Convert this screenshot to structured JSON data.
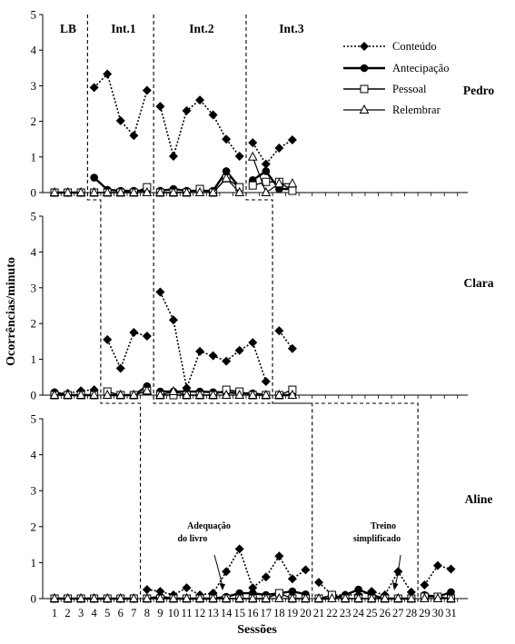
{
  "chart_data": {
    "type": "line",
    "ylabel": "Ocorrências/minuto",
    "xlabel": "Sessões",
    "x": [
      1,
      2,
      3,
      4,
      5,
      6,
      7,
      8,
      9,
      10,
      11,
      12,
      13,
      14,
      15,
      16,
      17,
      18,
      19,
      20,
      21,
      22,
      23,
      24,
      25,
      26,
      27,
      28,
      29,
      30,
      31
    ],
    "ylim": [
      0,
      5
    ],
    "yticks": [
      "0",
      "1",
      "2",
      "3",
      "4",
      "5"
    ],
    "phase_labels": [
      "LB",
      "Int.1",
      "Int.2",
      "Int.3"
    ],
    "legend": [
      "Conteúdo",
      "Antecipação",
      "Pessoal",
      "Relembrar"
    ],
    "annotations": [
      "Adequação",
      "do livro",
      "Treino",
      "simplificado"
    ],
    "panels": [
      {
        "participant": "Pedro",
        "series": [
          {
            "name": "Conteúdo",
            "x": [
              1,
              2,
              3,
              4,
              5,
              6,
              7,
              8,
              9,
              10,
              11,
              12,
              13,
              14,
              15,
              16,
              17,
              18,
              19
            ],
            "values": [
              0,
              0,
              0,
              2.95,
              3.33,
              2.02,
              1.6,
              2.87,
              2.42,
              1.02,
              2.3,
              2.6,
              2.18,
              1.5,
              1.02,
              1.4,
              0.8,
              1.25,
              1.48
            ]
          },
          {
            "name": "Antecipação",
            "x": [
              1,
              2,
              3,
              4,
              5,
              6,
              7,
              8,
              9,
              10,
              11,
              12,
              13,
              14,
              15,
              16,
              17,
              18,
              19
            ],
            "values": [
              0,
              0,
              0,
              0.42,
              0.08,
              0.05,
              0.05,
              0.05,
              0.05,
              0.1,
              0.05,
              0.05,
              0.05,
              0.6,
              0.15,
              0.35,
              0.6,
              0.1,
              0.1
            ]
          },
          {
            "name": "Pessoal",
            "x": [
              1,
              2,
              3,
              4,
              5,
              6,
              7,
              8,
              9,
              10,
              11,
              12,
              13,
              14,
              15,
              16,
              17,
              18,
              19
            ],
            "values": [
              0,
              0,
              0,
              0,
              0,
              0,
              0,
              0.15,
              0,
              0,
              0,
              0.1,
              0,
              0.4,
              0.15,
              0.2,
              0.3,
              0.3,
              0.05
            ]
          },
          {
            "name": "Relembrar",
            "x": [
              1,
              2,
              3,
              4,
              5,
              6,
              7,
              8,
              9,
              10,
              11,
              12,
              13,
              14,
              15,
              16,
              17,
              18,
              19
            ],
            "values": [
              0,
              0,
              0,
              0,
              0,
              0,
              0,
              0,
              0,
              0,
              0,
              0,
              0,
              0.4,
              0,
              1.0,
              0,
              0.25,
              0.25
            ]
          }
        ]
      },
      {
        "participant": "Clara",
        "series": [
          {
            "name": "Conteúdo",
            "x": [
              1,
              2,
              3,
              4,
              5,
              6,
              7,
              8,
              9,
              10,
              11,
              12,
              13,
              14,
              15,
              16,
              17,
              18,
              19
            ],
            "values": [
              0.05,
              0.05,
              0.12,
              0.15,
              1.55,
              0.75,
              1.75,
              1.65,
              2.88,
              2.1,
              0.2,
              1.22,
              1.1,
              0.95,
              1.25,
              1.47,
              0.38,
              1.8,
              1.3
            ]
          },
          {
            "name": "Antecipação",
            "x": [
              1,
              2,
              3,
              4,
              5,
              6,
              7,
              8,
              9,
              10,
              11,
              12,
              13,
              14,
              15,
              16,
              17,
              18,
              19
            ],
            "values": [
              0.08,
              0,
              0,
              0,
              0,
              0,
              0,
              0.25,
              0.1,
              0.1,
              0.1,
              0.1,
              0.08,
              0.08,
              0.05,
              0.05,
              0,
              0,
              0
            ]
          },
          {
            "name": "Pessoal",
            "x": [
              1,
              2,
              3,
              4,
              5,
              6,
              7,
              8,
              9,
              10,
              11,
              12,
              13,
              14,
              15,
              16,
              17,
              18,
              19
            ],
            "values": [
              0,
              0,
              0,
              0,
              0.1,
              0,
              0,
              0.12,
              0,
              0,
              0,
              0,
              0,
              0.15,
              0.1,
              0,
              0,
              0,
              0.15
            ]
          },
          {
            "name": "Relembrar",
            "x": [
              1,
              2,
              3,
              4,
              5,
              6,
              7,
              8,
              9,
              10,
              11,
              12,
              13,
              14,
              15,
              16,
              17,
              18,
              19
            ],
            "values": [
              0,
              0,
              0,
              0,
              0,
              0,
              0,
              0.12,
              0,
              0.1,
              0,
              0,
              0,
              0,
              0,
              0,
              0,
              0,
              0
            ]
          }
        ]
      },
      {
        "participant": "Aline",
        "series": [
          {
            "name": "Conteúdo",
            "x": [
              1,
              2,
              3,
              4,
              5,
              6,
              7,
              8,
              9,
              10,
              11,
              12,
              13,
              14,
              15,
              16,
              17,
              18,
              19,
              20,
              21,
              22,
              23,
              24,
              25,
              26,
              27,
              28,
              29,
              30,
              31
            ],
            "values": [
              0,
              0,
              0,
              0,
              0,
              0,
              0,
              0.25,
              0.2,
              0.1,
              0.3,
              0.1,
              0.15,
              0.75,
              1.38,
              0.3,
              0.6,
              1.18,
              0.55,
              0.8,
              0.45,
              0.1,
              0.1,
              0.1,
              0.2,
              0.1,
              0.75,
              0.18,
              0.38,
              0.92,
              0.82
            ]
          },
          {
            "name": "Antecipação",
            "x": [
              1,
              2,
              3,
              4,
              5,
              6,
              7,
              8,
              9,
              10,
              11,
              12,
              13,
              14,
              15,
              16,
              17,
              18,
              19,
              20,
              21,
              22,
              23,
              24,
              25,
              26,
              27,
              28,
              29,
              30,
              31
            ],
            "values": [
              0,
              0,
              0,
              0,
              0,
              0,
              0,
              0,
              0.05,
              0,
              0,
              0,
              0,
              0.05,
              0.15,
              0.15,
              0.1,
              0.15,
              0.2,
              0.12,
              0,
              0,
              0.1,
              0.25,
              0.1,
              0,
              0,
              0,
              0.1,
              0.05,
              0.18
            ]
          },
          {
            "name": "Pessoal",
            "x": [
              1,
              2,
              3,
              4,
              5,
              6,
              7,
              8,
              9,
              10,
              11,
              12,
              13,
              14,
              15,
              16,
              17,
              18,
              19,
              20,
              21,
              22,
              23,
              24,
              25,
              26,
              27,
              28,
              29,
              30,
              31
            ],
            "values": [
              0,
              0,
              0,
              0,
              0,
              0,
              0,
              0,
              0,
              0,
              0,
              0,
              0,
              0,
              0,
              0,
              0,
              0.15,
              0,
              0,
              0,
              0.1,
              0,
              0,
              0,
              0,
              0,
              0,
              0.05,
              0.05,
              0
            ]
          },
          {
            "name": "Relembrar",
            "x": [
              1,
              2,
              3,
              4,
              5,
              6,
              7,
              8,
              9,
              10,
              11,
              12,
              13,
              14,
              15,
              16,
              17,
              18,
              19,
              20,
              21,
              22,
              23,
              24,
              25,
              26,
              27,
              28,
              29,
              30,
              31
            ],
            "values": [
              0,
              0,
              0,
              0,
              0,
              0,
              0,
              0,
              0,
              0,
              0,
              0,
              0,
              0,
              0,
              0,
              0,
              0,
              0,
              0,
              0,
              0,
              0,
              0,
              0,
              0,
              0,
              0,
              0,
              0,
              0
            ]
          }
        ]
      }
    ]
  }
}
